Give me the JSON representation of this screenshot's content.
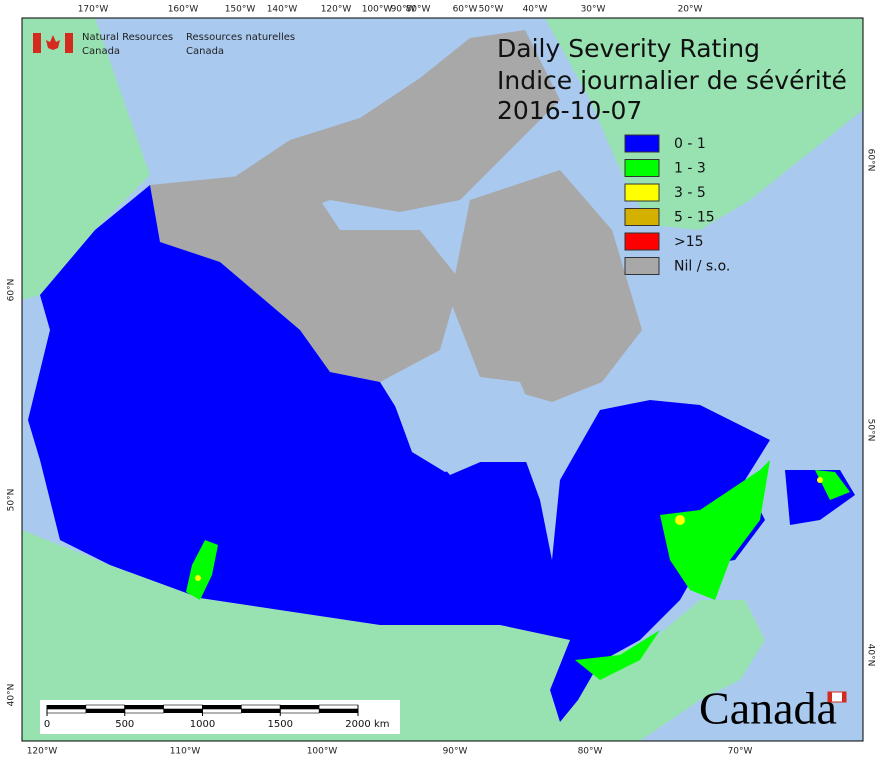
{
  "header": {
    "org_en": [
      "Natural Resources",
      "Canada"
    ],
    "org_fr": [
      "Ressources naturelles",
      "Canada"
    ]
  },
  "title": [
    "Daily Severity Rating",
    "Indice journalier de sévérité",
    "2016-10-07"
  ],
  "legend": [
    {
      "label": "0 - 1",
      "color": "#0000ff"
    },
    {
      "label": "1 - 3",
      "color": "#00ff00"
    },
    {
      "label": "3 - 5",
      "color": "#ffff00"
    },
    {
      "label": "5 - 15",
      "color": "#d4b000"
    },
    {
      "label": ">15",
      "color": "#ff0000"
    },
    {
      "label": "Nil / s.o.",
      "color": "#a8a8a8"
    }
  ],
  "graticule": {
    "top": [
      "170°W",
      "160°W",
      "150°W",
      "140°W",
      "120°W",
      "100°W",
      "90°W",
      "80°W",
      "60°W",
      "50°W",
      "40°W",
      "30°W",
      "20°W"
    ],
    "bottom": [
      "120°W",
      "110°W",
      "100°W",
      "90°W",
      "80°W",
      "70°W"
    ],
    "left": [
      "60°N",
      "50°N",
      "40°N"
    ],
    "right": [
      "60°N",
      "50°N",
      "40°N"
    ]
  },
  "scale_bar": {
    "ticks": [
      0,
      500,
      1000,
      1500,
      2000
    ],
    "unit": "km"
  },
  "wordmark": "Canada"
}
